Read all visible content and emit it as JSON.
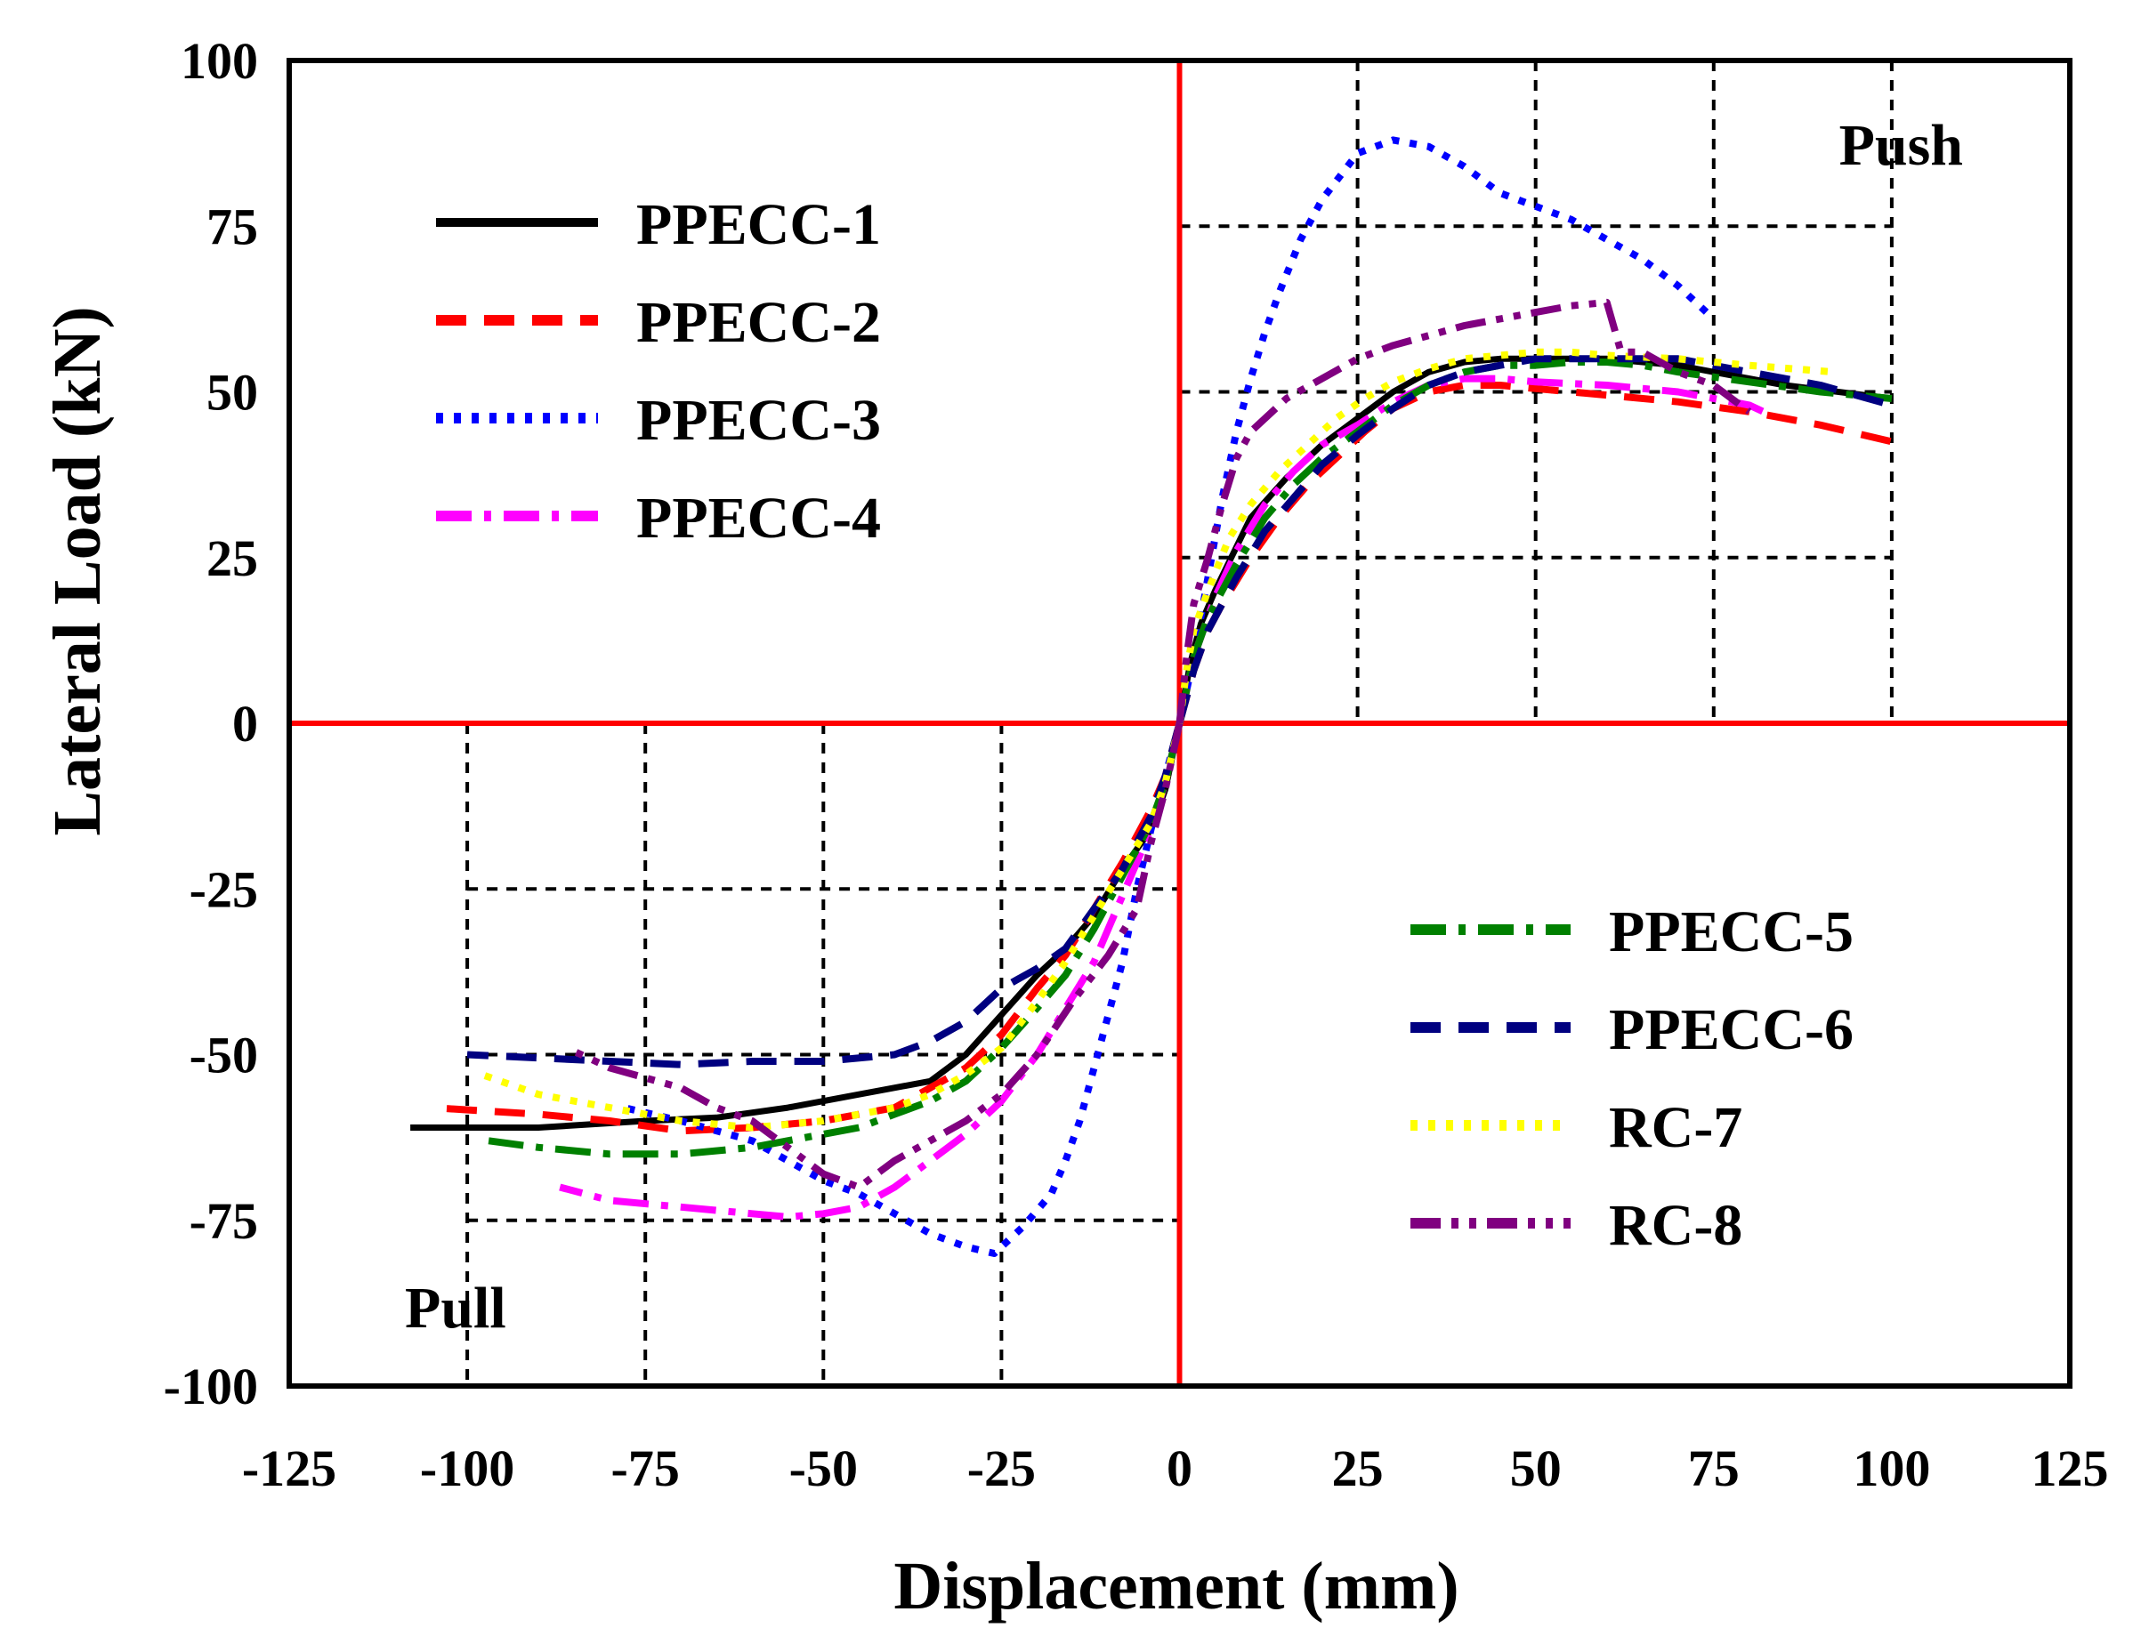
{
  "chart_data": {
    "type": "line",
    "title": "",
    "xlabel": "Displacement (mm)",
    "ylabel": "Lateral Load (kN)",
    "xlim": [
      -125,
      125
    ],
    "ylim": [
      -100,
      100
    ],
    "x_ticks": [
      "-125",
      "-100",
      "-75",
      "-50",
      "-25",
      "0",
      "25",
      "50",
      "75",
      "100",
      "125"
    ],
    "y_ticks": [
      "100",
      "75",
      "50",
      "25",
      "0",
      "-25",
      "-50",
      "-75",
      "-100"
    ],
    "grid": "dashed (upper-right and lower-left quadrants)",
    "annotations": {
      "push": "Push",
      "pull": "Pull"
    },
    "series": [
      {
        "name": "PPECC-1",
        "color": "#000000",
        "style": "solid",
        "push": [
          [
            0,
            0
          ],
          [
            1.5,
            9
          ],
          [
            3,
            15
          ],
          [
            5,
            20
          ],
          [
            10,
            31
          ],
          [
            15,
            37
          ],
          [
            20,
            42
          ],
          [
            25,
            46
          ],
          [
            30,
            50
          ],
          [
            35,
            53
          ],
          [
            40,
            54.5
          ],
          [
            45,
            55
          ],
          [
            50,
            55
          ],
          [
            55,
            55
          ],
          [
            60,
            55
          ],
          [
            65,
            54.5
          ],
          [
            70,
            54
          ],
          [
            75,
            53
          ],
          [
            85,
            51
          ],
          [
            100,
            49
          ]
        ],
        "pull": [
          [
            0,
            0
          ],
          [
            -2,
            -10
          ],
          [
            -4,
            -16
          ],
          [
            -8,
            -22
          ],
          [
            -12,
            -29
          ],
          [
            -16,
            -34
          ],
          [
            -20,
            -38
          ],
          [
            -25,
            -44
          ],
          [
            -30,
            -50
          ],
          [
            -35,
            -54
          ],
          [
            -45,
            -56
          ],
          [
            -55,
            -58
          ],
          [
            -65,
            -59.5
          ],
          [
            -75,
            -60
          ],
          [
            -90,
            -61
          ],
          [
            -108,
            -61
          ]
        ]
      },
      {
        "name": "PPECC-2",
        "color": "#ff0000",
        "style": "dashed",
        "push": [
          [
            0,
            0
          ],
          [
            2,
            8
          ],
          [
            4,
            14
          ],
          [
            6,
            18
          ],
          [
            10,
            25
          ],
          [
            14,
            31
          ],
          [
            18,
            36
          ],
          [
            22,
            40
          ],
          [
            26,
            44
          ],
          [
            30,
            47.5
          ],
          [
            35,
            50
          ],
          [
            40,
            51
          ],
          [
            45,
            51
          ],
          [
            50,
            50.5
          ],
          [
            60,
            49.5
          ],
          [
            70,
            48.5
          ],
          [
            80,
            47
          ],
          [
            90,
            45
          ],
          [
            100,
            42.5
          ],
          [
            102,
            42
          ]
        ],
        "pull": [
          [
            0,
            0
          ],
          [
            -2,
            -8
          ],
          [
            -4,
            -13
          ],
          [
            -8,
            -21
          ],
          [
            -12,
            -28
          ],
          [
            -16,
            -35
          ],
          [
            -20,
            -40
          ],
          [
            -25,
            -47
          ],
          [
            -30,
            -52
          ],
          [
            -35,
            -55
          ],
          [
            -40,
            -58
          ],
          [
            -50,
            -60
          ],
          [
            -60,
            -61
          ],
          [
            -70,
            -61.5
          ],
          [
            -80,
            -60
          ],
          [
            -90,
            -59
          ],
          [
            -105,
            -58
          ]
        ]
      },
      {
        "name": "PPECC-3",
        "color": "#0000ff",
        "style": "dotted",
        "push": [
          [
            0,
            0
          ],
          [
            2,
            10
          ],
          [
            4,
            22
          ],
          [
            6,
            34
          ],
          [
            8,
            44
          ],
          [
            10,
            52
          ],
          [
            12,
            59
          ],
          [
            14,
            65
          ],
          [
            17,
            73
          ],
          [
            20,
            79
          ],
          [
            25,
            86
          ],
          [
            30,
            88
          ],
          [
            35,
            87
          ],
          [
            40,
            84
          ],
          [
            45,
            80
          ],
          [
            50,
            78
          ],
          [
            55,
            76
          ],
          [
            60,
            73
          ],
          [
            65,
            70
          ],
          [
            70,
            66
          ],
          [
            74,
            62
          ]
        ],
        "pull": [
          [
            0,
            0
          ],
          [
            -2,
            -8
          ],
          [
            -4,
            -16
          ],
          [
            -6,
            -25
          ],
          [
            -8,
            -36
          ],
          [
            -10,
            -44
          ],
          [
            -12,
            -52
          ],
          [
            -14,
            -60
          ],
          [
            -16,
            -66
          ],
          [
            -18,
            -71
          ],
          [
            -22,
            -76
          ],
          [
            -26,
            -80
          ],
          [
            -30,
            -79
          ],
          [
            -35,
            -77
          ],
          [
            -40,
            -74
          ],
          [
            -45,
            -71
          ],
          [
            -50,
            -69
          ],
          [
            -55,
            -66
          ],
          [
            -60,
            -63
          ],
          [
            -70,
            -60
          ],
          [
            -78,
            -58
          ]
        ]
      },
      {
        "name": "PPECC-4",
        "color": "#ff00ff",
        "style": "dash-dot",
        "push": [
          [
            0,
            0
          ],
          [
            2,
            10
          ],
          [
            5,
            19
          ],
          [
            8,
            26
          ],
          [
            12,
            33
          ],
          [
            16,
            38
          ],
          [
            20,
            42
          ],
          [
            25,
            45
          ],
          [
            30,
            48.5
          ],
          [
            35,
            51
          ],
          [
            40,
            52
          ],
          [
            45,
            52
          ],
          [
            50,
            51.5
          ],
          [
            60,
            51
          ],
          [
            70,
            50
          ],
          [
            80,
            48
          ],
          [
            82,
            47
          ]
        ],
        "pull": [
          [
            0,
            0
          ],
          [
            -2,
            -9
          ],
          [
            -4,
            -16
          ],
          [
            -8,
            -26
          ],
          [
            -12,
            -36
          ],
          [
            -16,
            -43
          ],
          [
            -20,
            -50
          ],
          [
            -25,
            -57
          ],
          [
            -30,
            -62
          ],
          [
            -35,
            -66
          ],
          [
            -40,
            -70
          ],
          [
            -45,
            -73
          ],
          [
            -50,
            -74
          ],
          [
            -55,
            -74.5
          ],
          [
            -60,
            -74
          ],
          [
            -70,
            -73
          ],
          [
            -80,
            -72
          ],
          [
            -87,
            -70
          ]
        ]
      },
      {
        "name": "PPECC-5",
        "color": "#008000",
        "style": "dash-dot",
        "push": [
          [
            0,
            0
          ],
          [
            2,
            10
          ],
          [
            4,
            16
          ],
          [
            8,
            24
          ],
          [
            12,
            31
          ],
          [
            16,
            36
          ],
          [
            20,
            40
          ],
          [
            25,
            44
          ],
          [
            30,
            48
          ],
          [
            35,
            51
          ],
          [
            40,
            53
          ],
          [
            45,
            54
          ],
          [
            50,
            54
          ],
          [
            55,
            54.5
          ],
          [
            60,
            54.5
          ],
          [
            65,
            54
          ],
          [
            70,
            53
          ],
          [
            80,
            51.5
          ],
          [
            90,
            50
          ],
          [
            100,
            49
          ]
        ],
        "pull": [
          [
            0,
            0
          ],
          [
            -2,
            -9
          ],
          [
            -4,
            -15
          ],
          [
            -8,
            -23
          ],
          [
            -12,
            -31
          ],
          [
            -16,
            -38
          ],
          [
            -20,
            -43
          ],
          [
            -25,
            -49
          ],
          [
            -30,
            -54
          ],
          [
            -35,
            -57
          ],
          [
            -40,
            -59
          ],
          [
            -45,
            -61
          ],
          [
            -50,
            -62
          ],
          [
            -55,
            -63
          ],
          [
            -60,
            -64
          ],
          [
            -70,
            -65
          ],
          [
            -80,
            -65
          ],
          [
            -90,
            -64
          ],
          [
            -97,
            -63
          ]
        ]
      },
      {
        "name": "PPECC-6",
        "color": "#000080",
        "style": "dashed",
        "push": [
          [
            0,
            0
          ],
          [
            2,
            8
          ],
          [
            4,
            14
          ],
          [
            8,
            22
          ],
          [
            12,
            29
          ],
          [
            16,
            34
          ],
          [
            20,
            39
          ],
          [
            25,
            43.5
          ],
          [
            30,
            47.5
          ],
          [
            35,
            51
          ],
          [
            40,
            53
          ],
          [
            45,
            54
          ],
          [
            50,
            55
          ],
          [
            55,
            55
          ],
          [
            60,
            55
          ],
          [
            65,
            55
          ],
          [
            70,
            55
          ],
          [
            80,
            53
          ],
          [
            90,
            51
          ],
          [
            100,
            48
          ]
        ],
        "pull": [
          [
            0,
            0
          ],
          [
            -2,
            -8
          ],
          [
            -4,
            -14
          ],
          [
            -8,
            -22
          ],
          [
            -12,
            -28
          ],
          [
            -16,
            -34
          ],
          [
            -20,
            -37
          ],
          [
            -25,
            -40
          ],
          [
            -30,
            -45
          ],
          [
            -35,
            -48
          ],
          [
            -40,
            -50
          ],
          [
            -50,
            -51
          ],
          [
            -60,
            -51
          ],
          [
            -70,
            -51.5
          ],
          [
            -80,
            -51
          ],
          [
            -90,
            -50.5
          ],
          [
            -100,
            -50
          ]
        ]
      },
      {
        "name": "RC-7",
        "color": "#ffff00",
        "style": "dotted",
        "push": [
          [
            0,
            0
          ],
          [
            1,
            8
          ],
          [
            2,
            14
          ],
          [
            4,
            20
          ],
          [
            7,
            28
          ],
          [
            10,
            33
          ],
          [
            14,
            38
          ],
          [
            18,
            42
          ],
          [
            22,
            46
          ],
          [
            26,
            49
          ],
          [
            30,
            51.5
          ],
          [
            35,
            53.5
          ],
          [
            40,
            55
          ],
          [
            45,
            55.5
          ],
          [
            50,
            56
          ],
          [
            55,
            56
          ],
          [
            60,
            55.5
          ],
          [
            70,
            55
          ],
          [
            80,
            54
          ],
          [
            92,
            53
          ]
        ],
        "pull": [
          [
            0,
            0
          ],
          [
            -2,
            -9
          ],
          [
            -4,
            -15
          ],
          [
            -8,
            -22
          ],
          [
            -12,
            -29
          ],
          [
            -16,
            -36
          ],
          [
            -20,
            -42
          ],
          [
            -25,
            -49
          ],
          [
            -30,
            -53
          ],
          [
            -35,
            -56
          ],
          [
            -40,
            -58
          ],
          [
            -50,
            -60
          ],
          [
            -60,
            -61
          ],
          [
            -70,
            -60
          ],
          [
            -80,
            -58
          ],
          [
            -90,
            -56
          ],
          [
            -98,
            -53
          ]
        ]
      },
      {
        "name": "RC-8",
        "color": "#800080",
        "style": "dash-dot-dot",
        "push": [
          [
            0,
            0
          ],
          [
            1,
            10
          ],
          [
            2,
            18
          ],
          [
            4,
            25
          ],
          [
            6,
            33
          ],
          [
            8,
            40
          ],
          [
            10,
            44
          ],
          [
            15,
            49
          ],
          [
            20,
            52
          ],
          [
            25,
            55
          ],
          [
            30,
            57
          ],
          [
            35,
            58.5
          ],
          [
            40,
            60
          ],
          [
            45,
            61
          ],
          [
            50,
            62
          ],
          [
            55,
            63
          ],
          [
            60,
            63.5
          ],
          [
            62,
            56
          ],
          [
            65,
            56
          ],
          [
            70,
            53
          ],
          [
            75,
            51
          ],
          [
            80,
            47
          ]
        ],
        "pull": [
          [
            0,
            0
          ],
          [
            -2,
            -10
          ],
          [
            -4,
            -18
          ],
          [
            -6,
            -28
          ],
          [
            -10,
            -35
          ],
          [
            -15,
            -42
          ],
          [
            -20,
            -50
          ],
          [
            -25,
            -56
          ],
          [
            -30,
            -60
          ],
          [
            -35,
            -63
          ],
          [
            -40,
            -66
          ],
          [
            -45,
            -70
          ],
          [
            -50,
            -68
          ],
          [
            -55,
            -64
          ],
          [
            -60,
            -60
          ],
          [
            -65,
            -58
          ],
          [
            -70,
            -55
          ],
          [
            -80,
            -52
          ],
          [
            -86,
            -49
          ]
        ]
      }
    ]
  },
  "legend": {
    "top": [
      "PPECC-1",
      "PPECC-2",
      "PPECC-3",
      "PPECC-4"
    ],
    "bottom": [
      "PPECC-5",
      "PPECC-6",
      "RC-7",
      "RC-8"
    ]
  }
}
